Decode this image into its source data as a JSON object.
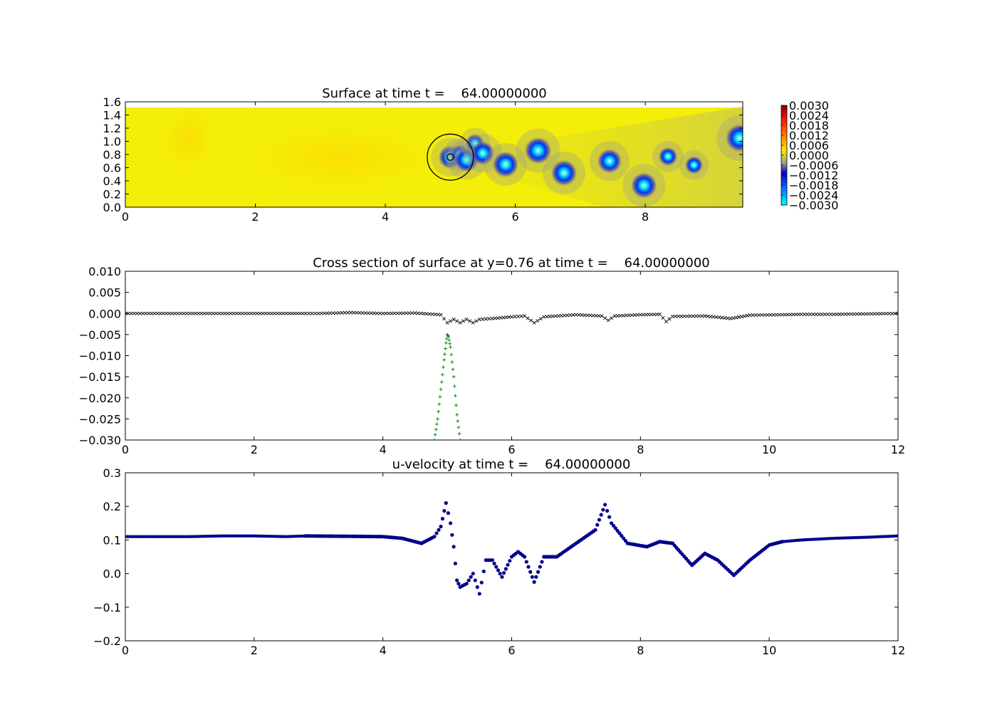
{
  "chart_data": [
    {
      "type": "heatmap",
      "title": "Surface at time t =    64.00000000",
      "xlim": [
        0,
        9.5
      ],
      "ylim": [
        0,
        1.6
      ],
      "xticks": [
        "0",
        "2",
        "4",
        "6",
        "8"
      ],
      "yticks": [
        "0.0",
        "0.2",
        "0.4",
        "0.6",
        "0.8",
        "1.0",
        "1.2",
        "1.4",
        "1.6"
      ],
      "colorbar": {
        "range": [
          -0.003,
          0.003
        ],
        "ticks": [
          "0.0030",
          "0.0024",
          "0.0018",
          "0.0012",
          "0.0006",
          "0.0000",
          "−0.0006",
          "−0.0012",
          "−0.0018",
          "−0.0024",
          "−0.0030"
        ]
      },
      "circle": {
        "center": [
          5.0,
          0.76
        ],
        "radius": 0.35
      },
      "inner_circle": {
        "center": [
          5.0,
          0.76
        ],
        "radius": 0.05
      },
      "features": [
        {
          "x": 5.0,
          "y": 0.76,
          "value": -0.0025
        },
        {
          "x": 5.15,
          "y": 0.8,
          "value": -0.002
        },
        {
          "x": 5.25,
          "y": 0.72,
          "value": -0.0026
        },
        {
          "x": 5.38,
          "y": 0.97,
          "value": -0.0018
        },
        {
          "x": 5.5,
          "y": 0.82,
          "value": -0.0025
        },
        {
          "x": 5.85,
          "y": 0.65,
          "value": -0.0028
        },
        {
          "x": 6.35,
          "y": 0.86,
          "value": -0.0029
        },
        {
          "x": 6.75,
          "y": 0.52,
          "value": -0.0028
        },
        {
          "x": 7.45,
          "y": 0.7,
          "value": -0.0026
        },
        {
          "x": 7.98,
          "y": 0.33,
          "value": -0.0028
        },
        {
          "x": 8.35,
          "y": 0.77,
          "value": -0.0018
        },
        {
          "x": 8.75,
          "y": 0.64,
          "value": -0.0016
        },
        {
          "x": 9.45,
          "y": 1.05,
          "value": -0.003
        }
      ]
    },
    {
      "type": "scatter",
      "title": "Cross section of surface at y=0.76 at time t =    64.00000000",
      "xlim": [
        0,
        12
      ],
      "ylim": [
        -0.03,
        0.01
      ],
      "xticks": [
        "0",
        "2",
        "4",
        "6",
        "8",
        "10",
        "12"
      ],
      "yticks": [
        "0.010",
        "0.005",
        "0.000",
        "−0.005",
        "−0.010",
        "−0.015",
        "−0.020",
        "−0.025",
        "−0.030"
      ],
      "series": [
        {
          "marker": "x",
          "color": "#000000",
          "points": [
            [
              0.0,
              0.0
            ],
            [
              0.5,
              0.0
            ],
            [
              1.0,
              0.0
            ],
            [
              1.5,
              0.0
            ],
            [
              2.0,
              0.0
            ],
            [
              2.5,
              0.0
            ],
            [
              2.8,
              0.0
            ],
            [
              3.0,
              0.0
            ],
            [
              3.5,
              0.0002
            ],
            [
              4.0,
              0.0
            ],
            [
              4.5,
              0.0001
            ],
            [
              4.9,
              -0.0003
            ],
            [
              5.0,
              -0.0022
            ],
            [
              5.1,
              -0.0014
            ],
            [
              5.2,
              -0.0022
            ],
            [
              5.3,
              -0.0014
            ],
            [
              5.4,
              -0.0022
            ],
            [
              5.5,
              -0.0014
            ],
            [
              5.7,
              -0.0012
            ],
            [
              6.0,
              -0.0008
            ],
            [
              6.2,
              -0.0006
            ],
            [
              6.35,
              -0.0022
            ],
            [
              6.5,
              -0.0008
            ],
            [
              7.0,
              -0.0003
            ],
            [
              7.4,
              -0.0006
            ],
            [
              7.5,
              -0.0016
            ],
            [
              7.6,
              -0.0006
            ],
            [
              8.0,
              -0.0003
            ],
            [
              8.3,
              -0.0002
            ],
            [
              8.4,
              -0.0019
            ],
            [
              8.5,
              -0.0007
            ],
            [
              9.0,
              -0.0006
            ],
            [
              9.4,
              -0.0012
            ],
            [
              9.7,
              -0.0004
            ],
            [
              10.2,
              -0.0003
            ],
            [
              10.5,
              -0.0002
            ],
            [
              11.0,
              -0.0002
            ],
            [
              11.5,
              -0.0001
            ],
            [
              12.0,
              0.0
            ]
          ]
        },
        {
          "marker": "+",
          "color": "#008000",
          "points": [
            [
              4.8,
              -0.03
            ],
            [
              4.85,
              -0.025
            ],
            [
              4.9,
              -0.018
            ],
            [
              4.95,
              -0.011
            ],
            [
              4.98,
              -0.007
            ],
            [
              5.0,
              -0.005
            ],
            [
              5.02,
              -0.0055
            ],
            [
              5.05,
              -0.008
            ],
            [
              5.1,
              -0.015
            ],
            [
              5.15,
              -0.024
            ],
            [
              5.2,
              -0.03
            ]
          ]
        }
      ]
    },
    {
      "type": "scatter",
      "title": "u-velocity at time t =    64.00000000",
      "xlim": [
        0,
        12
      ],
      "ylim": [
        -0.2,
        0.3
      ],
      "xticks": [
        "0",
        "2",
        "4",
        "6",
        "8",
        "10",
        "12"
      ],
      "yticks": [
        "0.3",
        "0.2",
        "0.1",
        "0.0",
        "−0.1",
        "−0.2"
      ],
      "series": [
        {
          "marker": "o",
          "color": "#00008b",
          "points": [
            [
              0.0,
              0.11
            ],
            [
              1.0,
              0.11
            ],
            [
              1.5,
              0.112
            ],
            [
              2.0,
              0.112
            ],
            [
              2.5,
              0.11
            ],
            [
              2.8,
              0.112
            ],
            [
              3.5,
              0.111
            ],
            [
              4.0,
              0.11
            ],
            [
              4.3,
              0.105
            ],
            [
              4.6,
              0.09
            ],
            [
              4.8,
              0.11
            ],
            [
              4.9,
              0.14
            ],
            [
              4.98,
              0.21
            ],
            [
              5.05,
              0.15
            ],
            [
              5.1,
              0.08
            ],
            [
              5.15,
              -0.02
            ],
            [
              5.2,
              -0.04
            ],
            [
              5.3,
              -0.03
            ],
            [
              5.4,
              0.0
            ],
            [
              5.5,
              -0.06
            ],
            [
              5.6,
              0.04
            ],
            [
              5.7,
              0.04
            ],
            [
              5.85,
              -0.01
            ],
            [
              6.0,
              0.05
            ],
            [
              6.1,
              0.065
            ],
            [
              6.2,
              0.05
            ],
            [
              6.35,
              -0.025
            ],
            [
              6.5,
              0.05
            ],
            [
              6.7,
              0.05
            ],
            [
              7.0,
              0.09
            ],
            [
              7.3,
              0.13
            ],
            [
              7.45,
              0.205
            ],
            [
              7.55,
              0.15
            ],
            [
              7.8,
              0.09
            ],
            [
              8.1,
              0.08
            ],
            [
              8.3,
              0.095
            ],
            [
              8.5,
              0.09
            ],
            [
              8.8,
              0.025
            ],
            [
              9.0,
              0.06
            ],
            [
              9.2,
              0.04
            ],
            [
              9.45,
              -0.005
            ],
            [
              9.7,
              0.04
            ],
            [
              10.0,
              0.085
            ],
            [
              10.2,
              0.095
            ],
            [
              10.5,
              0.1
            ],
            [
              11.0,
              0.105
            ],
            [
              11.5,
              0.108
            ],
            [
              12.0,
              0.112
            ]
          ]
        }
      ]
    }
  ]
}
